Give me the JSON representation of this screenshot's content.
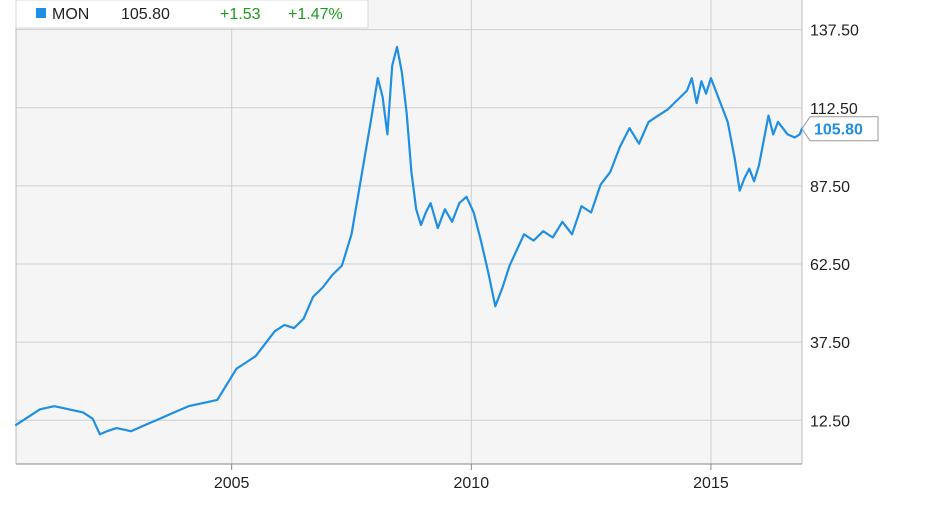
{
  "legend": {
    "symbol": "MON",
    "price": "105.80",
    "change": "+1.53",
    "change_pct": "+1.47%"
  },
  "colors": {
    "line": "#1f8fe5",
    "positive": "#1e9b1e",
    "grid": "#cfcfcf",
    "plot_bg": "#f5f5f5"
  },
  "chart_data": {
    "type": "line",
    "title": "",
    "xlabel": "",
    "ylabel": "",
    "grid": true,
    "legend_placement": "top-left",
    "y_axis_side": "right",
    "xlim": [
      2000.5,
      2016.9
    ],
    "ylim": [
      -1.5,
      147
    ],
    "x_ticks": [
      2005,
      2010,
      2015
    ],
    "x_tick_labels": [
      "2005",
      "2010",
      "2015"
    ],
    "y_ticks": [
      12.5,
      37.5,
      62.5,
      87.5,
      112.5,
      137.5
    ],
    "y_tick_labels": [
      "12.50",
      "37.50",
      "62.50",
      "87.50",
      "112.50",
      "137.50"
    ],
    "last_value_label": "105.80",
    "series": [
      {
        "name": "MON",
        "x": [
          2000.5,
          2000.7,
          2001.0,
          2001.3,
          2001.6,
          2001.9,
          2002.1,
          2002.25,
          2002.4,
          2002.6,
          2002.9,
          2003.2,
          2003.5,
          2003.8,
          2004.1,
          2004.4,
          2004.7,
          2004.9,
          2005.1,
          2005.3,
          2005.5,
          2005.7,
          2005.9,
          2006.1,
          2006.3,
          2006.5,
          2006.7,
          2006.9,
          2007.1,
          2007.3,
          2007.5,
          2007.7,
          2007.8,
          2007.9,
          2008.05,
          2008.15,
          2008.25,
          2008.35,
          2008.45,
          2008.55,
          2008.65,
          2008.75,
          2008.85,
          2008.95,
          2009.05,
          2009.15,
          2009.3,
          2009.45,
          2009.6,
          2009.75,
          2009.9,
          2010.05,
          2010.2,
          2010.35,
          2010.5,
          2010.65,
          2010.8,
          2010.95,
          2011.1,
          2011.3,
          2011.5,
          2011.7,
          2011.9,
          2012.1,
          2012.3,
          2012.5,
          2012.7,
          2012.9,
          2013.1,
          2013.3,
          2013.5,
          2013.7,
          2013.9,
          2014.1,
          2014.3,
          2014.5,
          2014.6,
          2014.7,
          2014.8,
          2014.9,
          2015.0,
          2015.1,
          2015.2,
          2015.35,
          2015.5,
          2015.6,
          2015.7,
          2015.8,
          2015.9,
          2016.0,
          2016.1,
          2016.2,
          2016.3,
          2016.4,
          2016.5,
          2016.6,
          2016.75,
          2016.85,
          2016.9
        ],
        "values": [
          11,
          13,
          16,
          17,
          16,
          15,
          13,
          8,
          9,
          10,
          9,
          11,
          13,
          15,
          17,
          18,
          19,
          24,
          29,
          31,
          33,
          37,
          41,
          43,
          42,
          45,
          52,
          55,
          59,
          62,
          72,
          90,
          99,
          108,
          122,
          116,
          104,
          126,
          132,
          124,
          111,
          92,
          80,
          75,
          79,
          82,
          74,
          80,
          76,
          82,
          84,
          79,
          70,
          60,
          49,
          55,
          62,
          67,
          72,
          70,
          73,
          71,
          76,
          72,
          81,
          79,
          88,
          92,
          100,
          106,
          101,
          108,
          110,
          112,
          115,
          118,
          122,
          114,
          121,
          117,
          122,
          118,
          114,
          108,
          96,
          86,
          90,
          93,
          89,
          94,
          102,
          110,
          104,
          108,
          106,
          104,
          103,
          104,
          105.8
        ]
      }
    ]
  }
}
